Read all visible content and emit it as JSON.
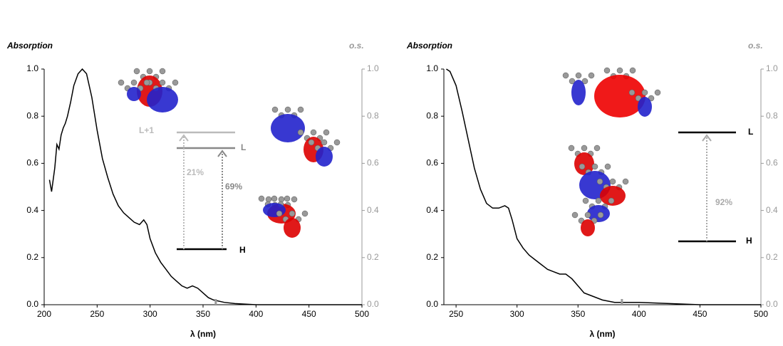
{
  "chart_data": [
    {
      "type": "line",
      "y_label": "Absorption",
      "y2_label": "o.s.",
      "x_label": "λ (nm)",
      "x": [
        205,
        207,
        210,
        212,
        214,
        216,
        218,
        220,
        222,
        225,
        228,
        232,
        236,
        240,
        245,
        250,
        255,
        260,
        265,
        270,
        275,
        280,
        285,
        290,
        294,
        297,
        300,
        305,
        310,
        315,
        320,
        325,
        330,
        335,
        340,
        345,
        350,
        355,
        360,
        370,
        380,
        400,
        450,
        500
      ],
      "series": [
        {
          "color": "#000000",
          "values": [
            0.53,
            0.48,
            0.58,
            0.68,
            0.66,
            0.72,
            0.75,
            0.77,
            0.8,
            0.86,
            0.93,
            0.98,
            1.0,
            0.98,
            0.88,
            0.74,
            0.62,
            0.54,
            0.47,
            0.42,
            0.39,
            0.37,
            0.35,
            0.34,
            0.36,
            0.34,
            0.28,
            0.22,
            0.18,
            0.15,
            0.12,
            0.1,
            0.08,
            0.07,
            0.08,
            0.07,
            0.05,
            0.03,
            0.02,
            0.01,
            0.005,
            0,
            0,
            0
          ]
        }
      ],
      "sticks": {
        "x": [
          362
        ],
        "values": [
          0.015
        ],
        "axis": "y2",
        "color": "#999999"
      },
      "xlim": [
        200,
        500
      ],
      "xticks": [
        200,
        250,
        300,
        350,
        400,
        450,
        500
      ],
      "ylim": [
        0,
        1
      ],
      "yticks": [
        {
          "value": 0,
          "label": "0.0"
        },
        {
          "value": 0.2,
          "label": "0.2"
        },
        {
          "value": 0.4,
          "label": "0.4"
        },
        {
          "value": 0.6,
          "label": "0.6"
        },
        {
          "value": 0.8,
          "label": "0.8"
        },
        {
          "value": 1,
          "label": "1.0"
        }
      ],
      "y2lim": [
        0,
        1
      ],
      "y2ticks": [
        {
          "value": 0,
          "label": "0.0"
        },
        {
          "value": 0.2,
          "label": "0.2"
        },
        {
          "value": 0.4,
          "label": "0.4"
        },
        {
          "value": 0.6,
          "label": "0.6"
        },
        {
          "value": 0.8,
          "label": "0.8"
        },
        {
          "value": 1,
          "label": "1.0"
        }
      ],
      "levels": [
        {
          "label": "L+1",
          "color": "#bbbbbb"
        },
        {
          "label": "L",
          "color": "#888888"
        },
        {
          "label": "H",
          "color": "#000000"
        }
      ],
      "transitions": [
        {
          "value": 21,
          "label": "21%",
          "color": "#bbbbbb"
        },
        {
          "value": 69,
          "label": "69%",
          "color": "#888888"
        }
      ]
    },
    {
      "type": "line",
      "y_label": "Absorption",
      "y2_label": "o.s.",
      "x_label": "λ (nm)",
      "x": [
        242,
        245,
        250,
        255,
        260,
        265,
        270,
        275,
        280,
        285,
        290,
        293,
        296,
        300,
        305,
        310,
        315,
        320,
        325,
        330,
        335,
        340,
        345,
        350,
        355,
        360,
        370,
        380,
        400,
        450,
        500
      ],
      "series": [
        {
          "color": "#000000",
          "values": [
            1.0,
            0.99,
            0.93,
            0.82,
            0.7,
            0.58,
            0.49,
            0.43,
            0.41,
            0.41,
            0.42,
            0.41,
            0.36,
            0.28,
            0.24,
            0.21,
            0.19,
            0.17,
            0.15,
            0.14,
            0.13,
            0.13,
            0.11,
            0.08,
            0.05,
            0.04,
            0.02,
            0.01,
            0.01,
            0,
            0
          ]
        }
      ],
      "sticks": {
        "x": [
          386
        ],
        "values": [
          0.015
        ],
        "axis": "y2",
        "color": "#999999"
      },
      "xlim": [
        240,
        500
      ],
      "xticks": [
        250,
        300,
        350,
        400,
        450,
        500
      ],
      "ylim": [
        0,
        1
      ],
      "yticks": [
        {
          "value": 0,
          "label": "0.0"
        },
        {
          "value": 0.2,
          "label": "0.2"
        },
        {
          "value": 0.4,
          "label": "0.4"
        },
        {
          "value": 0.6,
          "label": "0.6"
        },
        {
          "value": 0.8,
          "label": "0.8"
        },
        {
          "value": 1,
          "label": "1.0"
        }
      ],
      "y2lim": [
        0,
        1
      ],
      "y2ticks": [
        {
          "value": 0,
          "label": "0.0"
        },
        {
          "value": 0.2,
          "label": "0.2"
        },
        {
          "value": 0.4,
          "label": "0.4"
        },
        {
          "value": 0.6,
          "label": "0.6"
        },
        {
          "value": 0.8,
          "label": "0.8"
        },
        {
          "value": 1,
          "label": "1.0"
        }
      ],
      "levels": [
        {
          "label": "L",
          "color": "#000000"
        },
        {
          "label": "H",
          "color": "#000000"
        }
      ],
      "transitions": [
        {
          "value": 92,
          "label": "92%",
          "color": "#aaaaaa"
        }
      ]
    }
  ]
}
